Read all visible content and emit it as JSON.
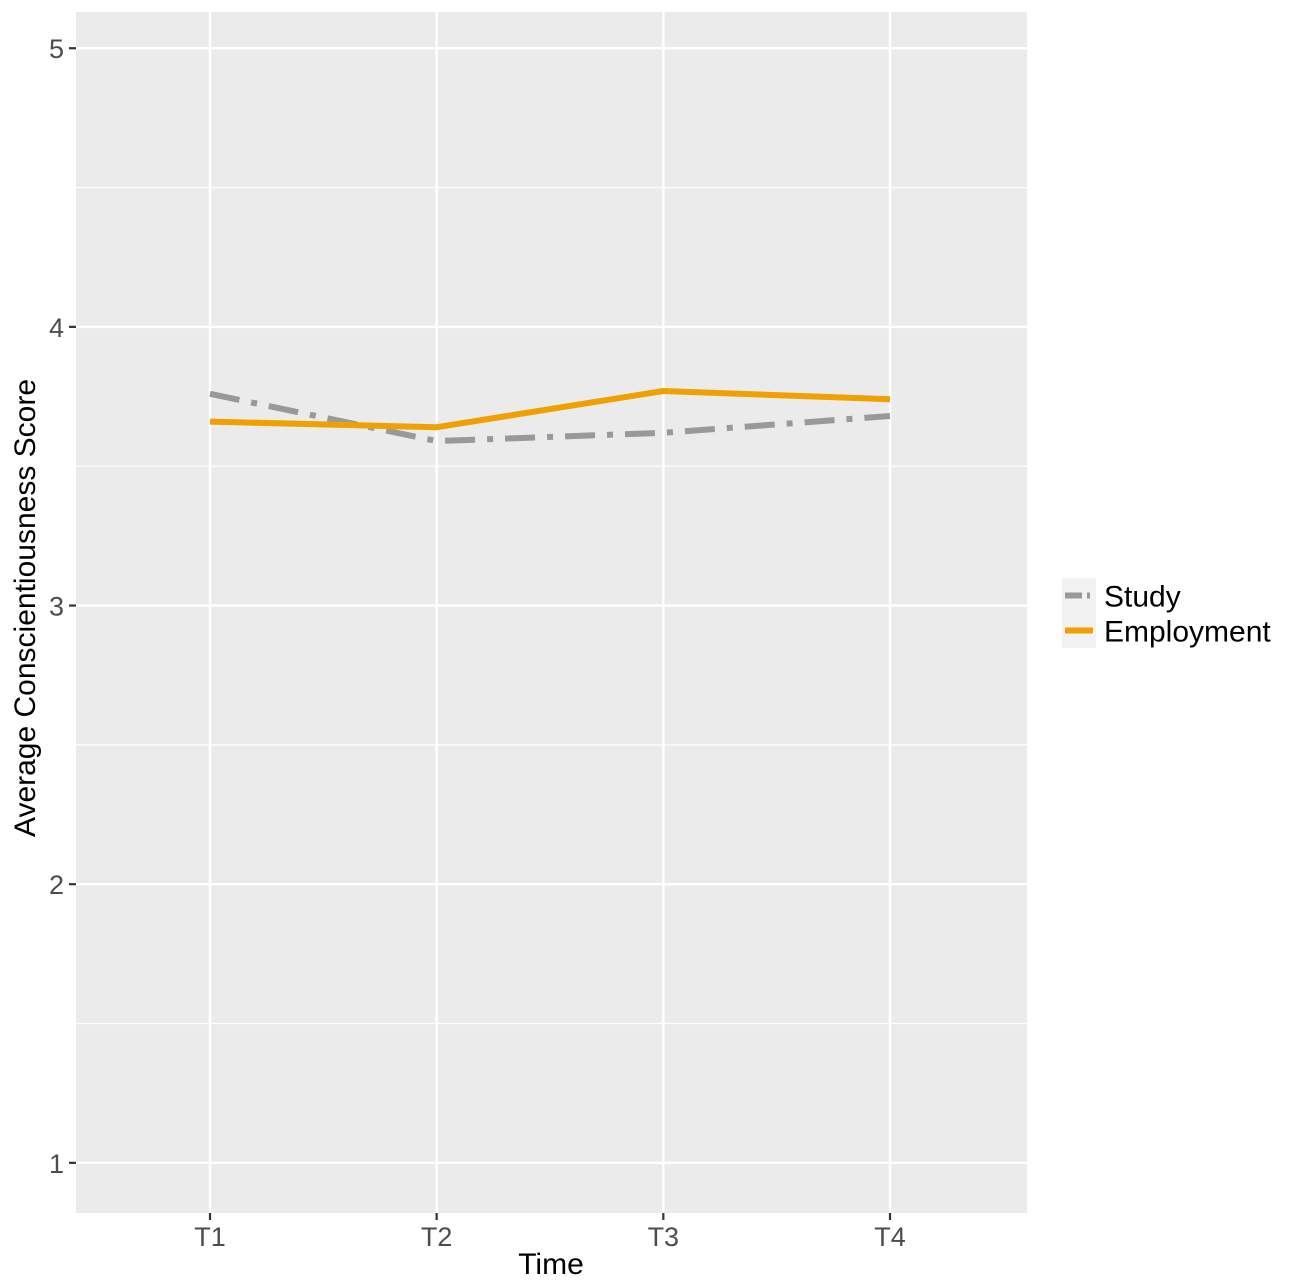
{
  "chart_data": {
    "type": "line",
    "title": "",
    "xlabel": "Time",
    "ylabel": "Average Conscientiousness Score",
    "categories": [
      "T1",
      "T2",
      "T3",
      "T4"
    ],
    "ylim": [
      0.82,
      5.13
    ],
    "yticks": [
      1,
      2,
      3,
      4,
      5
    ],
    "grid": true,
    "legend_position": "right",
    "series": [
      {
        "name": "Study",
        "values": [
          3.76,
          3.59,
          3.62,
          3.68
        ],
        "color": "#999999",
        "line_style": "dashdot"
      },
      {
        "name": "Employment",
        "values": [
          3.66,
          3.64,
          3.77,
          3.74
        ],
        "color": "#F0A000",
        "line_style": "solid"
      }
    ]
  },
  "colors": {
    "panel_background": "#EBEBEB",
    "grid": "#FFFFFF",
    "text": "#4D4D4D"
  }
}
